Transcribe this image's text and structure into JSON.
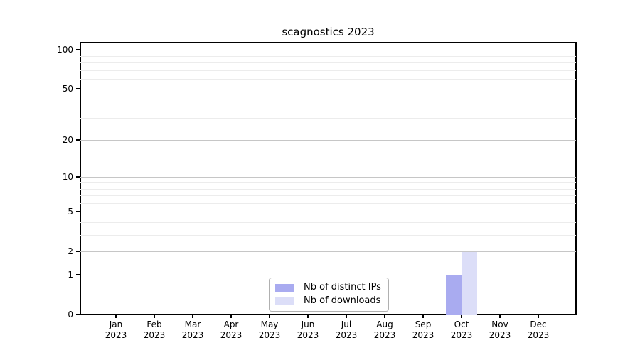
{
  "figure": {
    "title": "scagnostics 2023"
  },
  "chart_data": {
    "type": "bar",
    "title": "scagnostics 2023",
    "categories": [
      {
        "label": "Jan",
        "sub": "2023"
      },
      {
        "label": "Feb",
        "sub": "2023"
      },
      {
        "label": "Mar",
        "sub": "2023"
      },
      {
        "label": "Apr",
        "sub": "2023"
      },
      {
        "label": "May",
        "sub": "2023"
      },
      {
        "label": "Jun",
        "sub": "2023"
      },
      {
        "label": "Jul",
        "sub": "2023"
      },
      {
        "label": "Aug",
        "sub": "2023"
      },
      {
        "label": "Sep",
        "sub": "2023"
      },
      {
        "label": "Oct",
        "sub": "2023"
      },
      {
        "label": "Nov",
        "sub": "2023"
      },
      {
        "label": "Dec",
        "sub": "2023"
      }
    ],
    "series": [
      {
        "name": "Nb of distinct IPs",
        "color": "#a9abf0",
        "values": [
          0,
          0,
          0,
          0,
          0,
          0,
          0,
          0,
          0,
          1,
          0,
          0
        ]
      },
      {
        "name": "Nb of downloads",
        "color": "#dcdef8",
        "values": [
          0,
          0,
          0,
          0,
          0,
          0,
          0,
          0,
          0,
          2,
          0,
          0
        ]
      }
    ],
    "y_axis": {
      "scale": "log10(value+1)",
      "major_ticks": [
        0,
        1,
        2,
        5,
        10,
        20,
        50,
        100
      ],
      "minor_gridlines": [
        3,
        4,
        6,
        7,
        8,
        9,
        30,
        40,
        60,
        70,
        80,
        90
      ],
      "range": [
        0,
        100
      ]
    },
    "xlabel": "",
    "ylabel": "",
    "grid": "horizontal",
    "legend_position": "inside-bottom-center"
  },
  "colors": {
    "background": "#ffffff",
    "axis": "#000000",
    "major_grid": "#c6c6c6",
    "minor_grid": "#ececec",
    "legend_border": "#b0b0b0"
  }
}
